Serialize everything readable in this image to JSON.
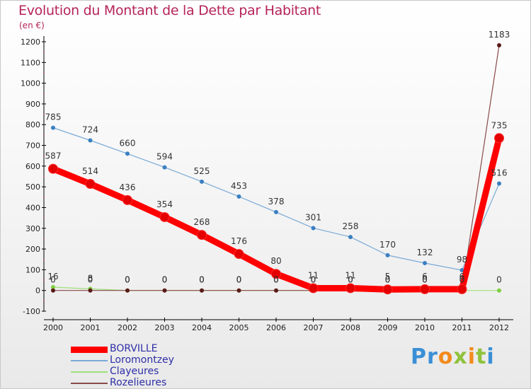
{
  "header": {
    "title": "Evolution du Montant de la Dette par Habitant",
    "unit": "(en €)"
  },
  "chart_data": {
    "type": "line",
    "title": "Evolution du Montant de la Dette par Habitant",
    "subtitle": "(en €)",
    "xlabel": "",
    "ylabel": "",
    "categories": [
      "2000",
      "2001",
      "2002",
      "2003",
      "2004",
      "2005",
      "2006",
      "2007",
      "2008",
      "2009",
      "2010",
      "2011",
      "2012"
    ],
    "y_ticks": [
      -100,
      0,
      100,
      200,
      300,
      400,
      500,
      600,
      700,
      800,
      900,
      1000,
      1100,
      1200
    ],
    "ylim": [
      -100,
      1250
    ],
    "grid": false,
    "legend_position": "bottom-left",
    "series": [
      {
        "name": "BORVILLE",
        "color": "#ff0000",
        "point_color": "#e40000",
        "line_width": 9,
        "marker_radius": 6.5,
        "values": [
          587,
          514,
          436,
          354,
          268,
          176,
          80,
          11,
          11,
          5,
          6,
          6,
          735
        ],
        "labels": [
          "587",
          "514",
          "436",
          "354",
          "268",
          "176",
          "80",
          "11",
          "11",
          "5",
          "6",
          "6",
          "735"
        ]
      },
      {
        "name": "Loromontzey",
        "color": "#7aaad6",
        "point_color": "#3a7fc2",
        "line_width": 1.2,
        "marker_radius": 3,
        "values": [
          785,
          724,
          660,
          594,
          525,
          453,
          378,
          301,
          258,
          170,
          132,
          98,
          516
        ],
        "labels": [
          "785",
          "724",
          "660",
          "594",
          "525",
          "453",
          "378",
          "301",
          "258",
          "170",
          "132",
          "98",
          "516"
        ]
      },
      {
        "name": "Clayeures",
        "color": "#9ee07a",
        "point_color": "#7fcf3f",
        "line_width": 1.2,
        "marker_radius": 3,
        "values": [
          16,
          8,
          0,
          0,
          0,
          0,
          0,
          0,
          0,
          0,
          0,
          0,
          0
        ],
        "labels": [
          "16",
          "8",
          "0",
          "0",
          "0",
          "0",
          "0",
          "0",
          "0",
          "0",
          "0",
          "0",
          "0"
        ]
      },
      {
        "name": "Rozelieures",
        "color": "#8a4a4a",
        "point_color": "#5a1a1a",
        "line_width": 1.2,
        "marker_radius": 3,
        "values": [
          0,
          0,
          0,
          0,
          0,
          0,
          0,
          0,
          0,
          0,
          0,
          0,
          1183
        ],
        "labels": [
          "0",
          "0",
          "0",
          "0",
          "0",
          "0",
          "0",
          "0",
          "0",
          "0",
          "0",
          "0",
          "1183"
        ]
      }
    ]
  },
  "legend": {
    "items": [
      {
        "label": "BORVILLE",
        "color": "#ff0000"
      },
      {
        "label": "Loromontzey",
        "color": "#7aaad6"
      },
      {
        "label": "Clayeures",
        "color": "#9ee07a"
      },
      {
        "label": "Rozelieures",
        "color": "#8a4a4a"
      }
    ]
  },
  "logo": {
    "letters": [
      "P",
      "r",
      "o",
      "x",
      "i",
      "t",
      "i"
    ],
    "alt": "Proxiti"
  }
}
